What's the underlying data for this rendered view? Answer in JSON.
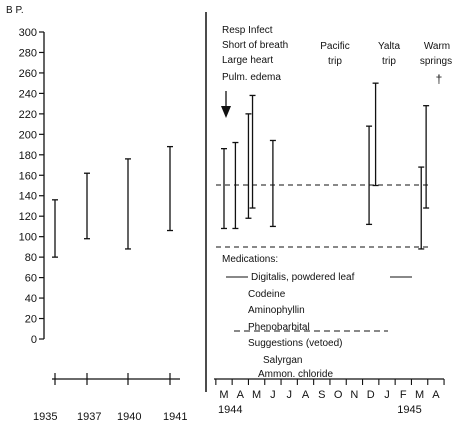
{
  "chart_data": {
    "type": "range-bar",
    "ylabel": "B P.",
    "ylim": [
      0,
      300
    ],
    "y_ticks": [
      0,
      20,
      40,
      60,
      80,
      100,
      120,
      140,
      160,
      180,
      200,
      220,
      240,
      260,
      280,
      300
    ],
    "y_tick_labels": [
      "0",
      "20",
      "40",
      "60",
      "80",
      "100",
      "120",
      "140",
      "160",
      "180",
      "200",
      "220",
      "240",
      "260",
      "280",
      "300"
    ],
    "left_panel": {
      "categories": [
        "1935",
        "1937",
        "1940",
        "1941"
      ],
      "ranges": [
        {
          "x": "1935",
          "low": 80,
          "high": 136
        },
        {
          "x": "1937",
          "low": 98,
          "high": 162
        },
        {
          "x": "1940",
          "low": 88,
          "high": 176
        },
        {
          "x": "1941",
          "low": 106,
          "high": 188
        }
      ]
    },
    "right_panel": {
      "months": [
        "M",
        "A",
        "M",
        "J",
        "J",
        "A",
        "S",
        "O",
        "N",
        "D",
        "J",
        "F",
        "M",
        "A"
      ],
      "year_labels": [
        {
          "label": "1944",
          "month_index": 0
        },
        {
          "label": "1945",
          "month_index": 11
        }
      ],
      "ranges": [
        {
          "month_index": 0.0,
          "low": 108,
          "high": 186
        },
        {
          "month_index": 0.7,
          "low": 108,
          "high": 192
        },
        {
          "month_index": 1.5,
          "low": 118,
          "high": 220
        },
        {
          "month_index": 1.75,
          "low": 128,
          "high": 238
        },
        {
          "month_index": 3.0,
          "low": 110,
          "high": 194
        },
        {
          "month_index": 8.9,
          "low": 112,
          "high": 208
        },
        {
          "month_index": 9.3,
          "low": 150,
          "high": 250
        },
        {
          "month_index": 12.1,
          "low": 88,
          "high": 168
        },
        {
          "month_index": 12.4,
          "low": 128,
          "high": 228
        }
      ],
      "reference_lines": [
        150,
        90
      ]
    },
    "annotations": {
      "events": [
        "Resp Infect",
        "Short of breath",
        "Large heart",
        "Pulm. edema"
      ],
      "pacific_trip": [
        "Pacific",
        "trip"
      ],
      "yalta_trip": [
        "Yalta",
        "trip"
      ],
      "warm_springs": [
        "Warm",
        "springs"
      ],
      "death_marker": "†"
    },
    "medications": {
      "header": "Medications:",
      "items": [
        "Digitalis, powdered leaf",
        "Codeine",
        "Aminophyllin",
        "Phenobarbital"
      ]
    },
    "suggestions": {
      "header": "Suggestions (vetoed)",
      "items": [
        "Salyrgan",
        "Ammon. chloride"
      ]
    },
    "grid": false,
    "legend": "none"
  }
}
